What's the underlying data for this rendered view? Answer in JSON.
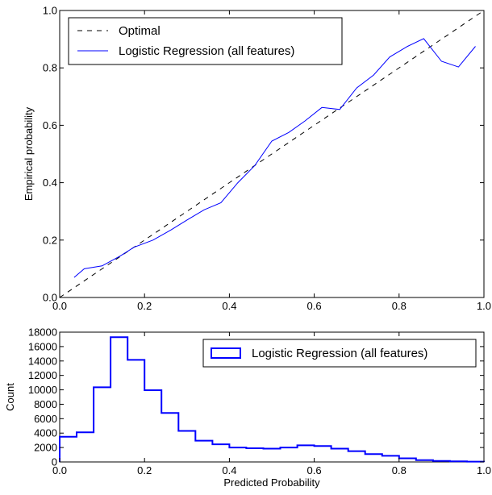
{
  "chart_data": [
    {
      "type": "line",
      "xlabel": "",
      "ylabel": "Empirical probability",
      "xlim": [
        0.0,
        1.0
      ],
      "ylim": [
        0.0,
        1.0
      ],
      "grid": false,
      "legend_position": "top-left",
      "xticks": [
        0.0,
        0.2,
        0.4,
        0.6,
        0.8,
        1.0
      ],
      "yticks": [
        0.0,
        0.2,
        0.4,
        0.6,
        0.8,
        1.0
      ],
      "xtick_labels": [
        "0.0",
        "0.2",
        "0.4",
        "0.6",
        "0.8",
        "1.0"
      ],
      "ytick_labels": [
        "0.0",
        "0.2",
        "0.4",
        "0.6",
        "0.8",
        "1.0"
      ],
      "series": [
        {
          "name": "Optimal",
          "style": "dashed",
          "color": "#000000",
          "x": [
            0.0,
            1.0
          ],
          "y": [
            0.0,
            1.0
          ]
        },
        {
          "name": "Logistic Regression (all features)",
          "style": "solid",
          "color": "#0000ff",
          "x": [
            0.034,
            0.058,
            0.1,
            0.143,
            0.175,
            0.22,
            0.262,
            0.3,
            0.34,
            0.38,
            0.42,
            0.46,
            0.5,
            0.54,
            0.578,
            0.618,
            0.66,
            0.7,
            0.74,
            0.778,
            0.82,
            0.858,
            0.9,
            0.94,
            0.98
          ],
          "y": [
            0.07,
            0.1,
            0.11,
            0.145,
            0.175,
            0.2,
            0.235,
            0.27,
            0.305,
            0.33,
            0.4,
            0.46,
            0.545,
            0.575,
            0.615,
            0.662,
            0.655,
            0.73,
            0.775,
            0.838,
            0.875,
            0.902,
            0.823,
            0.803,
            0.875
          ]
        }
      ]
    },
    {
      "type": "histogram",
      "xlabel": "Predicted Probability",
      "ylabel": "Count",
      "xlim": [
        0.0,
        1.0
      ],
      "ylim": [
        0,
        18000
      ],
      "grid": false,
      "legend_position": "top-right",
      "xticks": [
        0.0,
        0.2,
        0.4,
        0.6,
        0.8,
        1.0
      ],
      "yticks": [
        0,
        2000,
        4000,
        6000,
        8000,
        10000,
        12000,
        14000,
        16000,
        18000
      ],
      "xtick_labels": [
        "0.0",
        "0.2",
        "0.4",
        "0.6",
        "0.8",
        "1.0"
      ],
      "ytick_labels": [
        "0",
        "2000",
        "4000",
        "6000",
        "8000",
        "10000",
        "12000",
        "14000",
        "16000",
        "18000"
      ],
      "bin_edges": [
        0.0,
        0.04,
        0.08,
        0.12,
        0.16,
        0.2,
        0.24,
        0.28,
        0.32,
        0.36,
        0.4,
        0.44,
        0.48,
        0.52,
        0.56,
        0.6,
        0.64,
        0.68,
        0.72,
        0.76,
        0.8,
        0.84,
        0.88,
        0.92,
        0.96,
        1.0
      ],
      "series": [
        {
          "name": "Logistic Regression (all features)",
          "style": "step",
          "color": "#0000ff",
          "values": [
            3500,
            4100,
            10350,
            17300,
            14150,
            9950,
            6800,
            4300,
            2950,
            2450,
            2000,
            1900,
            1850,
            2000,
            2300,
            2200,
            1850,
            1500,
            1100,
            850,
            500,
            250,
            150,
            80,
            40
          ]
        }
      ]
    }
  ]
}
